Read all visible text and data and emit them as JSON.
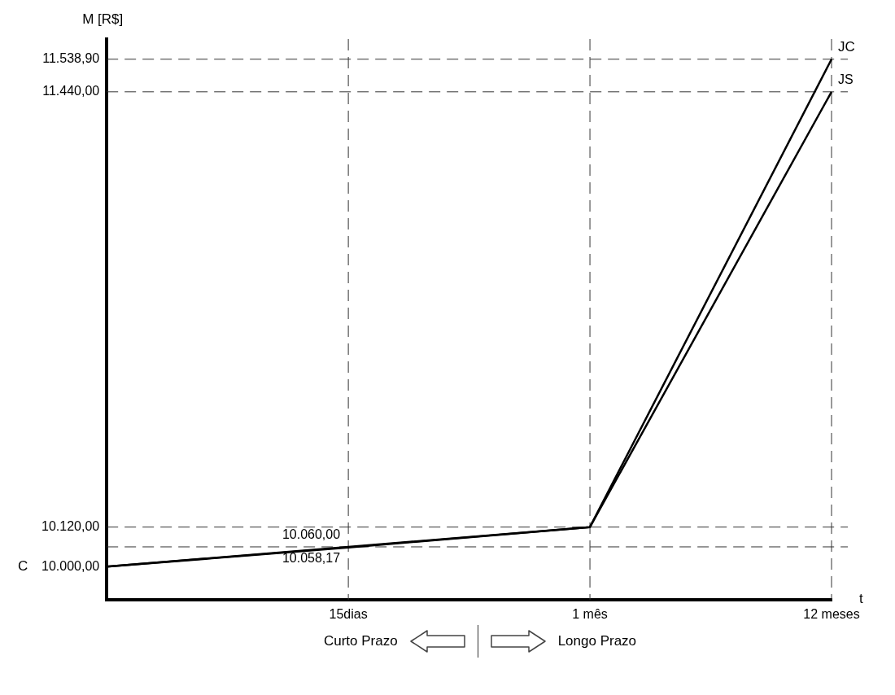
{
  "chart_data": {
    "type": "line",
    "xlabel": "t",
    "ylabel": "M [R$]",
    "categories": [
      null,
      "15dias",
      "1 mês",
      "12 meses"
    ],
    "series": [
      {
        "name": "JC",
        "color": "#000000",
        "values": [
          10000,
          10058.17,
          10120,
          11538.9
        ],
        "value_labels": [
          null,
          "10.058,17",
          null,
          null
        ]
      },
      {
        "name": "JS",
        "color": "#000000",
        "values": [
          10000,
          10060,
          10120,
          11440
        ],
        "value_labels": [
          null,
          "10.060,00",
          null,
          null
        ]
      }
    ],
    "ylim": [
      9900,
      11600
    ],
    "yticks": [
      {
        "value": 10000,
        "label": "10.000,00"
      },
      {
        "value": 10120,
        "label": "10.120,00"
      },
      {
        "value": 11440,
        "label": "11.440,00"
      },
      {
        "value": 11538.9,
        "label": "11.538,90"
      }
    ],
    "ref_lines": [
      {
        "axis": "y",
        "value": 10060,
        "line_style": "dashed"
      },
      {
        "axis": "y",
        "value": 10120,
        "line_style": "dashed"
      },
      {
        "axis": "y",
        "value": 11440,
        "line_style": "dashed"
      },
      {
        "axis": "y",
        "value": 11538.9,
        "line_style": "dashed"
      },
      {
        "axis": "x",
        "value": "15dias",
        "line_style": "dashed"
      },
      {
        "axis": "x",
        "value": "1 mês",
        "line_style": "dashed"
      },
      {
        "axis": "x",
        "value": "12 meses",
        "line_style": "dashed"
      }
    ],
    "annotations": [
      "C",
      "Curto Prazo",
      "Longo Prazo"
    ]
  }
}
